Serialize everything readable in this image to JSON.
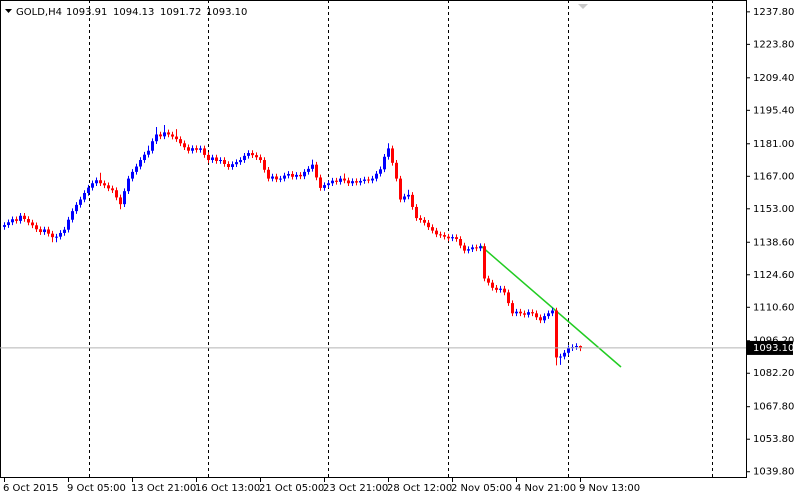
{
  "chart_data": {
    "type": "candlestick",
    "title": "GOLD,H4",
    "last_bar_labels": {
      "open": "1093.91",
      "high": "1094.13",
      "low": "1091.72",
      "close": "1093.10"
    },
    "price_line": {
      "value": 1093.1,
      "label": "1093.10"
    },
    "up_color": "#0000ff",
    "down_color": "#ff0000",
    "ylim": [
      1037.1,
      1242.9
    ],
    "yticks": [
      {
        "value": 1237.8,
        "label": "1237.80"
      },
      {
        "value": 1223.8,
        "label": "1223.80"
      },
      {
        "value": 1209.4,
        "label": "1209.40"
      },
      {
        "value": 1195.4,
        "label": "1195.40"
      },
      {
        "value": 1181,
        "label": "1181.00"
      },
      {
        "value": 1167,
        "label": "1167.00"
      },
      {
        "value": 1153,
        "label": "1153.00"
      },
      {
        "value": 1138.6,
        "label": "1138.60"
      },
      {
        "value": 1124.6,
        "label": "1124.60"
      },
      {
        "value": 1110.6,
        "label": "1110.60"
      },
      {
        "value": 1096.2,
        "label": "1096.20"
      },
      {
        "value": 1082.2,
        "label": "1082.20"
      },
      {
        "value": 1067.8,
        "label": "1067.80"
      },
      {
        "value": 1053.8,
        "label": "1053.80"
      },
      {
        "value": 1039.8,
        "label": "1039.80"
      }
    ],
    "categories": [
      "6 Oct 2015",
      null,
      null,
      null,
      null,
      null,
      null,
      null,
      null,
      null,
      null,
      null,
      null,
      null,
      null,
      null,
      "9 Oct 05:00",
      null,
      null,
      null,
      null,
      null,
      null,
      null,
      null,
      null,
      null,
      null,
      null,
      null,
      null,
      null,
      "13 Oct 21:00",
      null,
      null,
      null,
      null,
      null,
      null,
      null,
      null,
      null,
      null,
      null,
      null,
      null,
      null,
      null,
      "16 Oct 13:00",
      null,
      null,
      null,
      null,
      null,
      null,
      null,
      null,
      null,
      null,
      null,
      null,
      null,
      null,
      null,
      "21 Oct 05:00",
      null,
      null,
      null,
      null,
      null,
      null,
      null,
      null,
      null,
      null,
      null,
      null,
      null,
      null,
      null,
      "23 Oct 21:00",
      null,
      null,
      null,
      null,
      null,
      null,
      null,
      null,
      null,
      null,
      null,
      null,
      null,
      null,
      null,
      "28 Oct 12:00",
      null,
      null,
      null,
      null,
      null,
      null,
      null,
      null,
      null,
      null,
      null,
      null,
      null,
      null,
      null,
      "2 Nov 05:00",
      null,
      null,
      null,
      null,
      null,
      null,
      null,
      null,
      null,
      null,
      null,
      null,
      null,
      null,
      null,
      "4 Nov 21:00",
      null,
      null,
      null,
      null,
      null,
      null,
      null,
      null,
      null,
      null,
      null,
      null,
      null,
      null,
      null,
      "9 Nov 13:00"
    ],
    "open": [
      1145.2,
      1146.0,
      1147.2,
      1148.5,
      1147.8,
      1150.0,
      1148.6,
      1147.1,
      1145.9,
      1144.2,
      1143.0,
      1144.1,
      1142.3,
      1140.8,
      1141.0,
      1142.6,
      1144.0,
      1148.3,
      1152.0,
      1154.7,
      1157.0,
      1159.8,
      1162.1,
      1164.0,
      1165.3,
      1164.0,
      1163.1,
      1161.8,
      1161.0,
      1157.9,
      1155.0,
      1160.6,
      1166.0,
      1168.9,
      1171.2,
      1174.0,
      1176.3,
      1178.0,
      1182.1,
      1185.0,
      1184.2,
      1185.9,
      1185.0,
      1184.1,
      1183.0,
      1181.2,
      1179.5,
      1178.0,
      1179.1,
      1178.4,
      1179.0,
      1176.2,
      1174.0,
      1175.1,
      1173.6,
      1174.0,
      1172.3,
      1171.0,
      1172.2,
      1173.1,
      1174.0,
      1175.8,
      1177.0,
      1176.1,
      1175.2,
      1174.0,
      1169.8,
      1166.0,
      1166.9,
      1165.7,
      1166.0,
      1167.3,
      1168.0,
      1166.8,
      1167.6,
      1167.0,
      1168.9,
      1170.2,
      1172.0,
      1166.5,
      1162.0,
      1163.2,
      1164.0,
      1165.1,
      1164.6,
      1166.0,
      1165.2,
      1164.0,
      1164.9,
      1164.3,
      1165.0,
      1165.6,
      1165.2,
      1166.0,
      1168.1,
      1170.0,
      1175.4,
      1179.0,
      1172.8,
      1166.0,
      1157.0,
      1158.3,
      1159.0,
      1153.8,
      1149.0,
      1148.2,
      1147.0,
      1145.1,
      1143.6,
      1142.0,
      1141.7,
      1141.0,
      1140.3,
      1140.8,
      1140.0,
      1137.2,
      1135.0,
      1135.6,
      1136.4,
      1136.0,
      1136.9,
      1123.0,
      1121.2,
      1119.0,
      1118.1,
      1118.6,
      1117.0,
      1112.4,
      1108.0,
      1108.7,
      1108.0,
      1107.4,
      1108.5,
      1108.0,
      1106.3,
      1105.0,
      1106.8,
      1108.0,
      1109.2,
      1089.0,
      1089.4,
      1091.0,
      1093.0,
      1093.5,
      1093.91
    ],
    "high": [
      1147.2,
      1148.4,
      1149.7,
      1149.7,
      1151.2,
      1151.2,
      1149.8,
      1148.3,
      1147.1,
      1145.4,
      1145.3,
      1145.3,
      1143.5,
      1142.2,
      1143.8,
      1145.2,
      1149.5,
      1153.2,
      1155.9,
      1158.2,
      1161.0,
      1163.3,
      1165.2,
      1166.5,
      1168.5,
      1165.2,
      1164.3,
      1163.0,
      1162.2,
      1159.1,
      1161.8,
      1167.2,
      1170.1,
      1172.4,
      1175.2,
      1177.5,
      1180.2,
      1183.3,
      1188.2,
      1186.2,
      1189.1,
      1187.1,
      1186.2,
      1187.3,
      1184.2,
      1182.4,
      1180.7,
      1180.3,
      1180.3,
      1180.2,
      1180.2,
      1177.4,
      1176.3,
      1176.3,
      1175.2,
      1175.2,
      1173.5,
      1173.4,
      1174.3,
      1175.2,
      1177.0,
      1178.2,
      1178.2,
      1177.3,
      1176.4,
      1175.2,
      1171.0,
      1168.1,
      1168.1,
      1167.2,
      1168.5,
      1169.2,
      1169.2,
      1168.8,
      1168.8,
      1170.1,
      1171.4,
      1174.2,
      1173.2,
      1167.7,
      1164.4,
      1165.2,
      1166.3,
      1166.3,
      1167.2,
      1168.2,
      1166.4,
      1166.1,
      1166.1,
      1166.2,
      1166.8,
      1166.8,
      1167.2,
      1169.3,
      1171.2,
      1176.6,
      1181.2,
      1180.2,
      1174.0,
      1167.2,
      1159.5,
      1161.2,
      1160.2,
      1155.0,
      1150.2,
      1149.4,
      1148.2,
      1146.3,
      1144.8,
      1143.2,
      1142.9,
      1142.2,
      1142.0,
      1142.0,
      1141.2,
      1138.4,
      1136.8,
      1137.6,
      1137.6,
      1138.1,
      1138.1,
      1124.2,
      1122.4,
      1120.2,
      1119.8,
      1119.8,
      1118.2,
      1113.6,
      1109.9,
      1109.9,
      1109.2,
      1109.7,
      1109.7,
      1109.2,
      1107.5,
      1108.0,
      1109.2,
      1110.4,
      1110.4,
      1090.6,
      1092.2,
      1094.2,
      1094.7,
      1095.1,
      1094.13
    ],
    "low": [
      1144.0,
      1144.8,
      1146.0,
      1146.6,
      1146.6,
      1147.4,
      1145.9,
      1144.7,
      1143.0,
      1141.8,
      1141.8,
      1141.1,
      1138.6,
      1138.6,
      1139.8,
      1141.4,
      1142.8,
      1147.1,
      1150.8,
      1153.5,
      1155.8,
      1158.6,
      1160.9,
      1162.8,
      1162.8,
      1161.9,
      1160.6,
      1159.8,
      1156.7,
      1152.8,
      1153.8,
      1159.4,
      1164.8,
      1167.7,
      1170.0,
      1172.8,
      1175.1,
      1176.8,
      1180.9,
      1183.0,
      1183.0,
      1183.8,
      1182.9,
      1181.8,
      1180.0,
      1178.3,
      1176.8,
      1176.8,
      1177.2,
      1177.2,
      1175.0,
      1172.8,
      1172.8,
      1172.4,
      1172.4,
      1171.1,
      1169.8,
      1169.8,
      1171.0,
      1171.9,
      1172.8,
      1174.6,
      1174.9,
      1174.0,
      1172.8,
      1168.6,
      1164.8,
      1164.8,
      1164.5,
      1164.5,
      1164.8,
      1166.1,
      1165.6,
      1165.6,
      1165.8,
      1165.8,
      1167.7,
      1169.0,
      1165.3,
      1160.8,
      1160.8,
      1162.0,
      1162.8,
      1163.4,
      1163.4,
      1164.0,
      1162.8,
      1162.8,
      1163.1,
      1163.1,
      1163.8,
      1164.0,
      1164.0,
      1164.8,
      1166.9,
      1168.8,
      1174.2,
      1171.6,
      1164.8,
      1155.8,
      1155.8,
      1157.1,
      1152.6,
      1147.8,
      1147.0,
      1145.8,
      1143.9,
      1142.4,
      1140.8,
      1140.5,
      1139.8,
      1139.1,
      1139.1,
      1138.8,
      1136.0,
      1133.8,
      1133.8,
      1134.4,
      1134.8,
      1134.8,
      1121.8,
      1120.0,
      1117.8,
      1116.9,
      1116.9,
      1115.8,
      1111.2,
      1106.8,
      1106.8,
      1106.8,
      1106.2,
      1106.2,
      1106.8,
      1105.1,
      1103.8,
      1103.8,
      1105.6,
      1106.8,
      1085.6,
      1085.8,
      1088.2,
      1089.8,
      1091.8,
      1092.3,
      1091.72
    ],
    "close": [
      1146.0,
      1147.2,
      1148.5,
      1147.8,
      1150.0,
      1148.6,
      1147.1,
      1145.9,
      1144.2,
      1143.0,
      1144.1,
      1142.3,
      1140.8,
      1141.0,
      1142.6,
      1144.0,
      1148.3,
      1152.0,
      1154.7,
      1157.0,
      1159.8,
      1162.1,
      1164.0,
      1165.3,
      1164.0,
      1163.1,
      1161.8,
      1161.0,
      1157.9,
      1155.0,
      1160.6,
      1166.0,
      1168.9,
      1171.2,
      1174.0,
      1176.3,
      1178.0,
      1182.1,
      1185.0,
      1184.2,
      1185.9,
      1185.0,
      1184.1,
      1183.0,
      1181.2,
      1179.5,
      1178.0,
      1179.1,
      1178.4,
      1179.0,
      1176.2,
      1174.0,
      1175.1,
      1173.6,
      1174.0,
      1172.3,
      1171.0,
      1172.2,
      1173.1,
      1174.0,
      1175.8,
      1177.0,
      1176.1,
      1175.2,
      1174.0,
      1169.8,
      1166.0,
      1166.9,
      1165.7,
      1166.0,
      1167.3,
      1168.0,
      1166.8,
      1167.6,
      1167.0,
      1168.9,
      1170.2,
      1172.0,
      1166.5,
      1162.0,
      1163.2,
      1164.0,
      1165.1,
      1164.6,
      1166.0,
      1165.2,
      1164.0,
      1164.9,
      1164.3,
      1165.0,
      1165.6,
      1165.2,
      1166.0,
      1168.1,
      1170.0,
      1175.4,
      1179.0,
      1172.8,
      1166.0,
      1157.0,
      1158.3,
      1159.0,
      1153.8,
      1149.0,
      1148.2,
      1147.0,
      1145.1,
      1143.6,
      1142.0,
      1141.7,
      1141.0,
      1140.3,
      1140.8,
      1140.0,
      1137.2,
      1135.0,
      1135.6,
      1136.4,
      1136.0,
      1136.9,
      1123.0,
      1121.2,
      1119.0,
      1118.1,
      1118.6,
      1117.0,
      1112.4,
      1108.0,
      1108.7,
      1108.0,
      1107.4,
      1108.5,
      1108.0,
      1106.3,
      1105.0,
      1106.8,
      1108.0,
      1109.2,
      1089.0,
      1089.4,
      1091.0,
      1093.0,
      1093.5,
      1093.91,
      1093.1
    ]
  }
}
